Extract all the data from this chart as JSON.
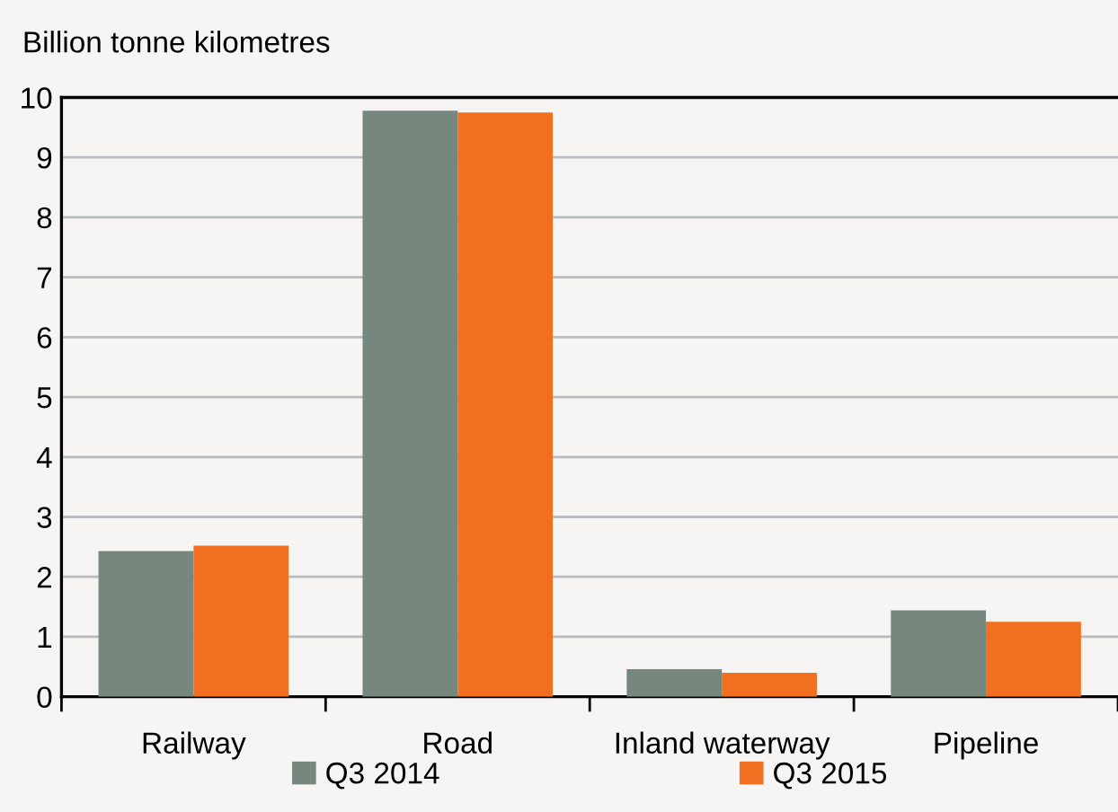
{
  "chart_data": {
    "type": "bar",
    "ylabel": "Billion tonne kilometres",
    "categories": [
      "Railway",
      "Road",
      "Inland waterway",
      "Pipeline"
    ],
    "series": [
      {
        "name": "Q3 2014",
        "color": "#76877e",
        "values": [
          2.43,
          9.78,
          0.46,
          1.44
        ]
      },
      {
        "name": "Q3 2015",
        "color": "#f26f21",
        "values": [
          2.52,
          9.75,
          0.4,
          1.25
        ]
      }
    ],
    "ylim": [
      0,
      10
    ],
    "yticks": [
      0,
      1,
      2,
      3,
      4,
      5,
      6,
      7,
      8,
      9,
      10
    ],
    "grid": "y",
    "legend": "bottom"
  }
}
